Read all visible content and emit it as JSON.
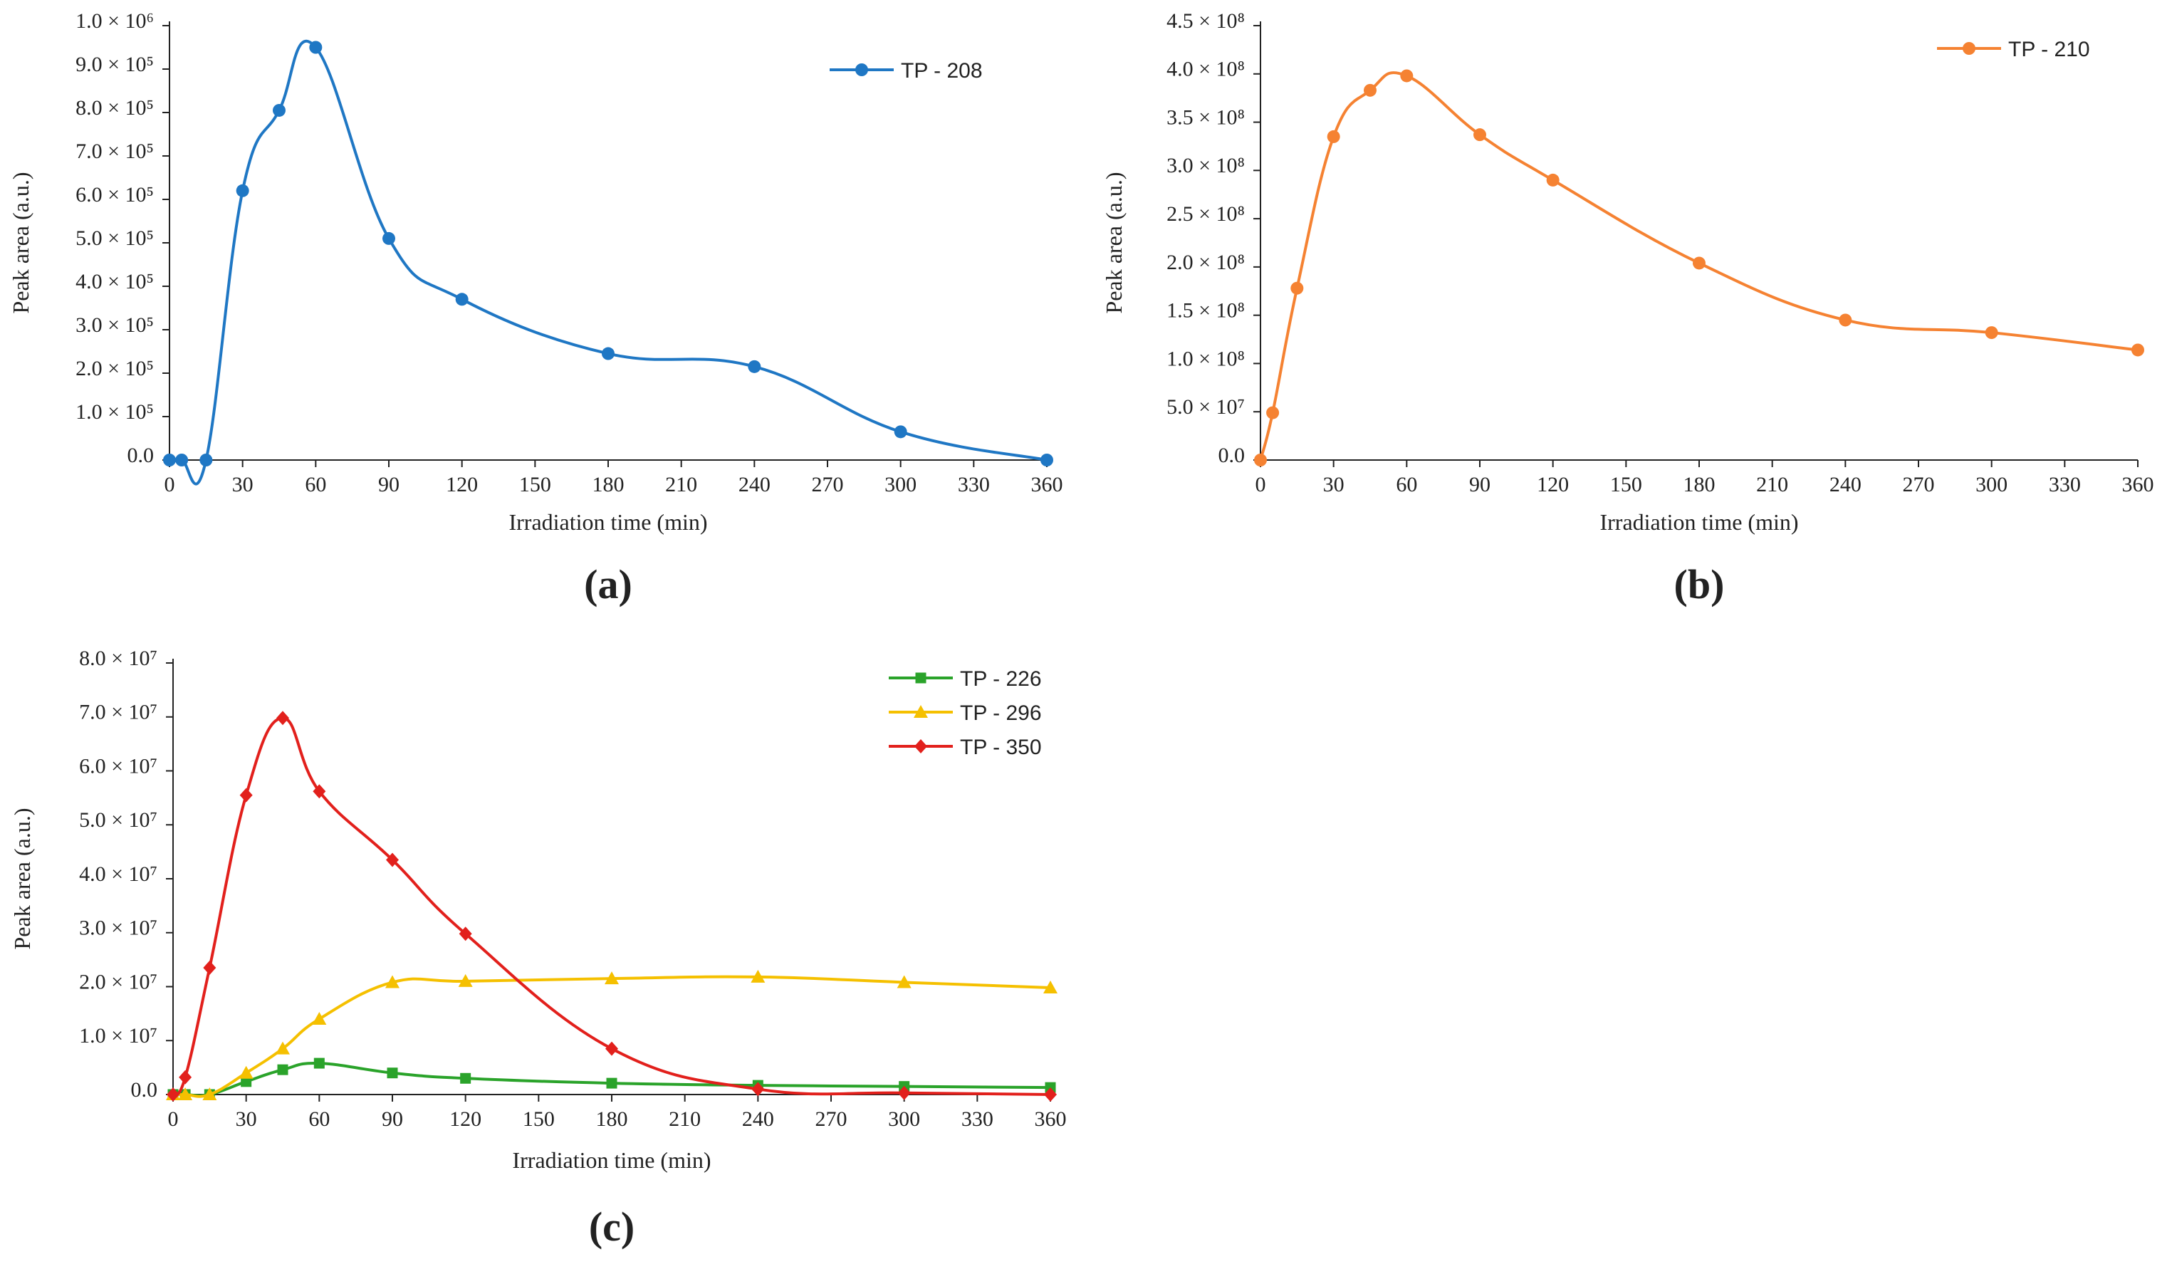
{
  "chart_data": [
    {
      "id": "a",
      "type": "line",
      "caption": "(a)",
      "xlabel": "Irradiation time (min)",
      "ylabel": "Peak area (a.u.)",
      "xlim": [
        0,
        360
      ],
      "xticks": [
        0,
        30,
        60,
        90,
        120,
        150,
        180,
        210,
        240,
        270,
        300,
        330,
        360
      ],
      "ylim": [
        0,
        1000000
      ],
      "yticks": [
        {
          "value": 0,
          "label": "0.0"
        },
        {
          "value": 100000,
          "label": "1.0 × 10⁵"
        },
        {
          "value": 200000,
          "label": "2.0 × 10⁵"
        },
        {
          "value": 300000,
          "label": "3.0 × 10⁵"
        },
        {
          "value": 400000,
          "label": "4.0 × 10⁵"
        },
        {
          "value": 500000,
          "label": "5.0 × 10⁵"
        },
        {
          "value": 600000,
          "label": "6.0 × 10⁵"
        },
        {
          "value": 700000,
          "label": "7.0 × 10⁵"
        },
        {
          "value": 800000,
          "label": "8.0 × 10⁵"
        },
        {
          "value": 900000,
          "label": "9.0 × 10⁵"
        },
        {
          "value": 1000000,
          "label": "1.0 × 10⁶"
        }
      ],
      "legend_position": "top-right",
      "series": [
        {
          "name": "TP - 208",
          "color": "#1f77c4",
          "marker": "circle",
          "x": [
            0,
            5,
            15,
            30,
            45,
            60,
            90,
            120,
            180,
            240,
            300,
            360
          ],
          "y": [
            0,
            0,
            0,
            620000,
            805000,
            950000,
            510000,
            370000,
            245000,
            215000,
            65000,
            0
          ]
        }
      ]
    },
    {
      "id": "b",
      "type": "line",
      "caption": "(b)",
      "xlabel": "Irradiation time (min)",
      "ylabel": "Peak area (a.u.)",
      "xlim": [
        0,
        360
      ],
      "xticks": [
        0,
        30,
        60,
        90,
        120,
        150,
        180,
        210,
        240,
        270,
        300,
        330,
        360
      ],
      "ylim": [
        0,
        450000000
      ],
      "yticks": [
        {
          "value": 0,
          "label": "0.0"
        },
        {
          "value": 50000000,
          "label": "5.0 × 10⁷"
        },
        {
          "value": 100000000,
          "label": "1.0 × 10⁸"
        },
        {
          "value": 150000000,
          "label": "1.5 × 10⁸"
        },
        {
          "value": 200000000,
          "label": "2.0 × 10⁸"
        },
        {
          "value": 250000000,
          "label": "2.5 × 10⁸"
        },
        {
          "value": 300000000,
          "label": "3.0 × 10⁸"
        },
        {
          "value": 350000000,
          "label": "3.5 × 10⁸"
        },
        {
          "value": 400000000,
          "label": "4.0 × 10⁸"
        },
        {
          "value": 450000000,
          "label": "4.5 × 10⁸"
        }
      ],
      "legend_position": "top-right",
      "series": [
        {
          "name": "TP - 210",
          "color": "#f58232",
          "marker": "circle",
          "x": [
            0,
            5,
            15,
            30,
            45,
            60,
            90,
            120,
            180,
            240,
            300,
            360
          ],
          "y": [
            0,
            49000000,
            178000000,
            335000000,
            383000000,
            398000000,
            337000000,
            290000000,
            204000000,
            145000000,
            132000000,
            114000000
          ]
        }
      ]
    },
    {
      "id": "c",
      "type": "line",
      "caption": "(c)",
      "xlabel": "Irradiation time (min)",
      "ylabel": "Peak area (a.u.)",
      "xlim": [
        0,
        360
      ],
      "xticks": [
        0,
        30,
        60,
        90,
        120,
        150,
        180,
        210,
        240,
        270,
        300,
        330,
        360
      ],
      "ylim": [
        0,
        80000000
      ],
      "yticks": [
        {
          "value": 0,
          "label": "0.0"
        },
        {
          "value": 10000000,
          "label": "1.0 × 10⁷"
        },
        {
          "value": 20000000,
          "label": "2.0 × 10⁷"
        },
        {
          "value": 30000000,
          "label": "3.0 × 10⁷"
        },
        {
          "value": 40000000,
          "label": "4.0 × 10⁷"
        },
        {
          "value": 50000000,
          "label": "5.0 × 10⁷"
        },
        {
          "value": 60000000,
          "label": "6.0 × 10⁷"
        },
        {
          "value": 70000000,
          "label": "7.0 × 10⁷"
        },
        {
          "value": 80000000,
          "label": "8.0 × 10⁷"
        }
      ],
      "legend_position": "top-right",
      "series": [
        {
          "name": "TP - 226",
          "color": "#2aa32a",
          "marker": "square",
          "x": [
            0,
            5,
            15,
            30,
            45,
            60,
            90,
            120,
            180,
            240,
            300,
            360
          ],
          "y": [
            0,
            0,
            0,
            2400000,
            4600000,
            5800000,
            4000000,
            3000000,
            2100000,
            1700000,
            1500000,
            1300000
          ]
        },
        {
          "name": "TP - 296",
          "color": "#f5c000",
          "marker": "triangle",
          "x": [
            0,
            5,
            15,
            30,
            45,
            60,
            90,
            120,
            180,
            240,
            300,
            360
          ],
          "y": [
            0,
            0,
            0,
            4000000,
            8500000,
            14000000,
            20800000,
            21000000,
            21500000,
            21800000,
            20800000,
            19800000
          ]
        },
        {
          "name": "TP - 350",
          "color": "#e2201c",
          "marker": "diamond",
          "x": [
            0,
            5,
            15,
            30,
            45,
            60,
            90,
            120,
            180,
            240,
            300,
            360
          ],
          "y": [
            0,
            3200000,
            23500000,
            55500000,
            69800000,
            56200000,
            43500000,
            29800000,
            8500000,
            1000000,
            300000,
            0
          ]
        }
      ]
    }
  ]
}
